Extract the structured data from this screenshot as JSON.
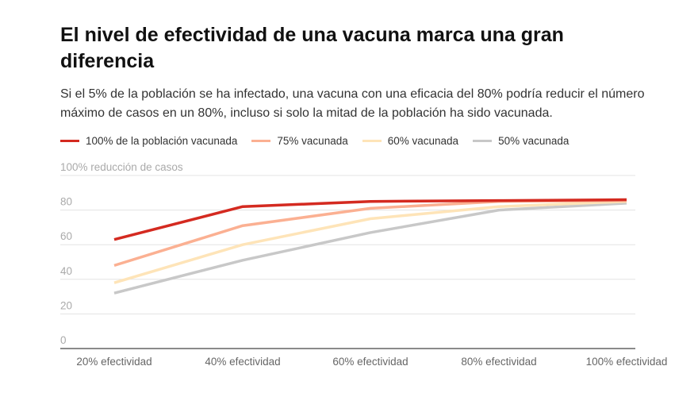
{
  "title": "El nivel de efectividad de una vacuna marca una gran diferencia",
  "subtitle": "Si el 5% de la población se ha infectado, una vacuna con una eficacia del 80% podría reducir el número máximo de casos en un 80%, incluso si solo la mitad de la población ha sido vacunada.",
  "chart_data": {
    "type": "line",
    "categories": [
      "20% efectividad",
      "40% efectividad",
      "60% efectividad",
      "80% efectividad",
      "100% efectividad"
    ],
    "ylabel": "100% reducción de casos",
    "ylim": [
      0,
      100
    ],
    "yticks": [
      "0",
      "20",
      "40",
      "60",
      "80"
    ],
    "grid": true,
    "legend_placement": "top",
    "series": [
      {
        "name": "100% de la población vacunada",
        "color": "#d42a20",
        "values": [
          63,
          82,
          85,
          85.5,
          86
        ]
      },
      {
        "name": "75% vacunada",
        "color": "#fbb092",
        "values": [
          48,
          71,
          81,
          85,
          85.5
        ]
      },
      {
        "name": "60% vacunada",
        "color": "#fee4b8",
        "values": [
          38,
          60,
          75,
          82,
          85
        ]
      },
      {
        "name": "50% vacunada",
        "color": "#c8c8c8",
        "values": [
          32,
          51,
          67,
          80,
          84
        ]
      }
    ]
  }
}
